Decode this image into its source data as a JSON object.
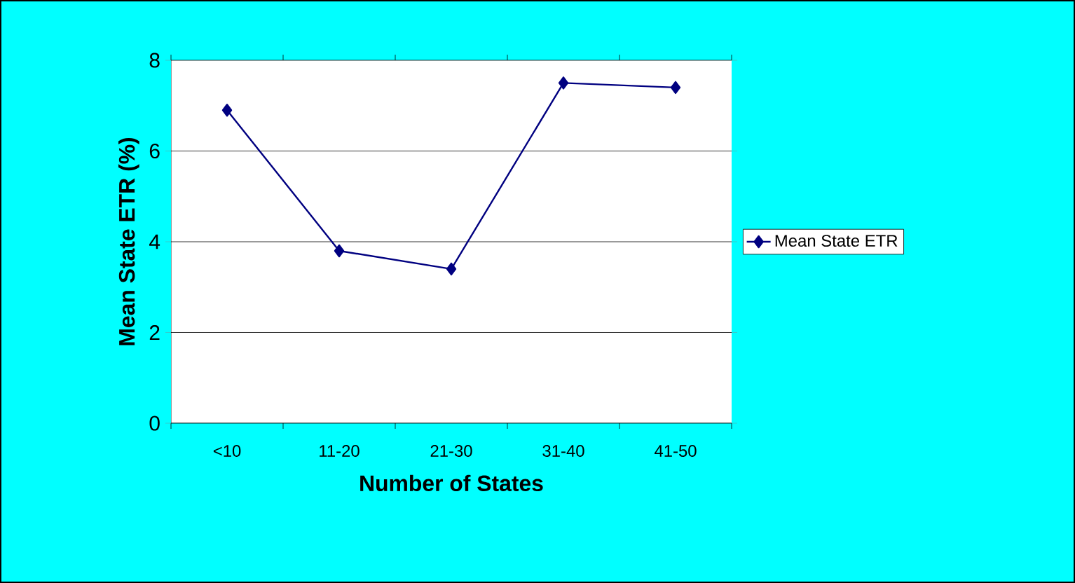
{
  "chart_data": {
    "type": "line",
    "xlabel": "Number of States",
    "ylabel": "Mean State ETR (%)",
    "categories": [
      "<10",
      "11-20",
      "21-30",
      "31-40",
      "41-50"
    ],
    "series": [
      {
        "name": "Mean State ETR",
        "color": "#000080",
        "values": [
          6.9,
          3.8,
          3.4,
          7.5,
          7.4
        ]
      }
    ],
    "ylim": [
      0,
      8
    ],
    "yticks": [
      0,
      2,
      4,
      6,
      8
    ],
    "grid": "y",
    "legend": "right",
    "marker": "diamond",
    "line_style": "solid"
  }
}
